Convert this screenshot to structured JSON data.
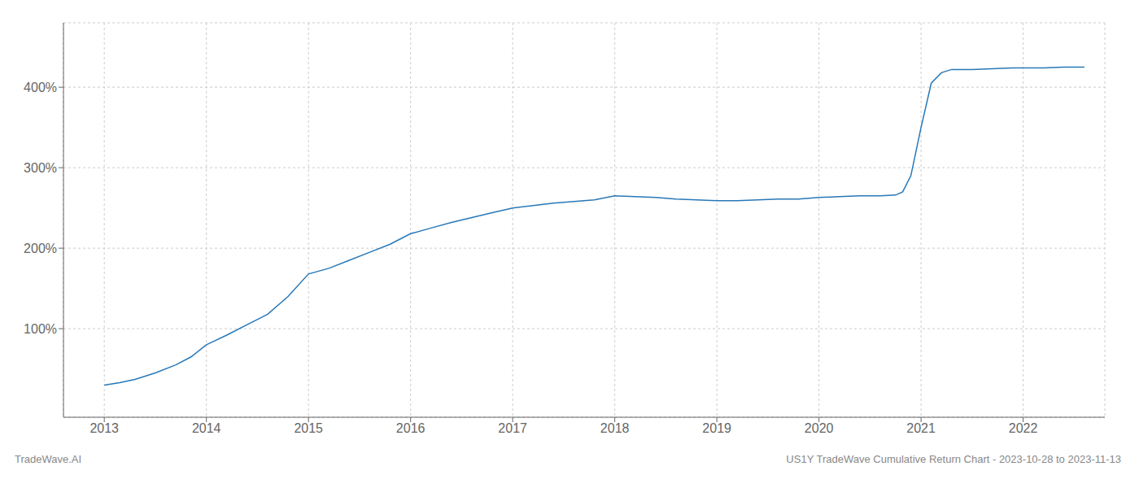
{
  "chart_data": {
    "type": "line",
    "x": [
      2013.0,
      2013.15,
      2013.3,
      2013.5,
      2013.7,
      2013.85,
      2014.0,
      2014.2,
      2014.4,
      2014.6,
      2014.8,
      2015.0,
      2015.2,
      2015.4,
      2015.6,
      2015.8,
      2016.0,
      2016.2,
      2016.4,
      2016.6,
      2016.8,
      2017.0,
      2017.2,
      2017.4,
      2017.6,
      2017.8,
      2018.0,
      2018.2,
      2018.4,
      2018.6,
      2018.8,
      2019.0,
      2019.2,
      2019.4,
      2019.6,
      2019.8,
      2020.0,
      2020.2,
      2020.4,
      2020.6,
      2020.75,
      2020.82,
      2020.9,
      2021.0,
      2021.1,
      2021.2,
      2021.3,
      2021.5,
      2021.7,
      2021.9,
      2022.0,
      2022.2,
      2022.4,
      2022.6
    ],
    "values": [
      30,
      33,
      37,
      45,
      55,
      65,
      80,
      92,
      105,
      118,
      140,
      168,
      175,
      185,
      195,
      205,
      218,
      225,
      232,
      238,
      244,
      250,
      253,
      256,
      258,
      260,
      265,
      264,
      263,
      261,
      260,
      259,
      259,
      260,
      261,
      261,
      263,
      264,
      265,
      265,
      266,
      270,
      290,
      350,
      405,
      418,
      422,
      422,
      423,
      424,
      424,
      424,
      425,
      425
    ],
    "color": "#2878b8",
    "xlim": [
      2012.6,
      2022.8
    ],
    "xticks": [
      2013,
      2014,
      2015,
      2016,
      2017,
      2018,
      2019,
      2020,
      2021,
      2022
    ],
    "ylim": [
      -10,
      480
    ],
    "yticks": [
      {
        "value": 100,
        "label": "100%"
      },
      {
        "value": 200,
        "label": "200%"
      },
      {
        "value": 300,
        "label": "300%"
      },
      {
        "value": 400,
        "label": "400%"
      }
    ],
    "grid": true,
    "annotations": [
      "TradeWave.AI",
      "US1Y TradeWave Cumulative Return Chart - 2023-10-28 to 2023-11-13"
    ]
  }
}
